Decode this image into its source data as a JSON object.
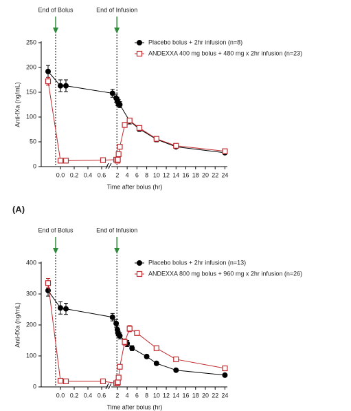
{
  "chart_data": [
    {
      "type": "line",
      "annotations": [
        {
          "text": "End of Bolus",
          "x": -0.07
        },
        {
          "text": "End of Infusion",
          "x": 1.9
        }
      ],
      "ylabel": "Anti-fXa (ng/mL)",
      "xlabel": "Time after bolus (hr)",
      "ylim": [
        0,
        250
      ],
      "yticks": [
        0,
        50,
        100,
        150,
        200,
        250
      ],
      "x_segments": [
        {
          "xlim": [
            -0.28,
            0.7
          ],
          "xticks": [
            {
              "value": 0,
              "label": "0.0"
            },
            0.2,
            0.4,
            0.6
          ]
        },
        {
          "xlim": [
            0.75,
            24.5
          ],
          "xticks": [
            2,
            4,
            6,
            8,
            10,
            12,
            14,
            16,
            18,
            20,
            22,
            24
          ]
        }
      ],
      "legend": "upper right",
      "series": [
        {
          "name": "Placebo bolus + 2hr infusion (n=8)",
          "color": "#000000",
          "marker": "circle",
          "x": [
            -0.18,
            0.0,
            0.08,
            1.0,
            1.75,
            2,
            2.1,
            2.25,
            2.5,
            4.5,
            6.5,
            10,
            14,
            24
          ],
          "values": [
            192,
            163,
            163,
            148,
            138,
            132,
            130,
            128,
            125,
            92,
            76,
            55,
            40,
            28
          ],
          "errors": [
            12,
            12,
            12,
            8,
            8,
            8,
            7,
            7,
            6,
            6,
            5,
            5,
            3,
            3
          ]
        },
        {
          "name": "ANDEXXA 400 mg bolus + 480 mg x 2hr infusion (n=23)",
          "color": "#c0282d",
          "marker": "square",
          "x": [
            -0.18,
            0.0,
            0.08,
            0.62,
            1.75,
            2,
            2.1,
            2.25,
            2.5,
            3.5,
            4.5,
            6.5,
            10,
            14,
            24
          ],
          "values": [
            172,
            12,
            12,
            13,
            14,
            12,
            14,
            25,
            40,
            84,
            93,
            78,
            56,
            42,
            31
          ],
          "errors": [
            8,
            2,
            2,
            2,
            2,
            2,
            2,
            3,
            4,
            5,
            5,
            4,
            4,
            3,
            3
          ]
        }
      ],
      "panel_label": "(A)"
    },
    {
      "type": "line",
      "annotations": [
        {
          "text": "End of Bolus",
          "x": -0.07
        },
        {
          "text": "End of Infusion",
          "x": 1.9
        }
      ],
      "ylabel": "Anti-fXa (ng/mL)",
      "xlabel": "Time after bolus (hr)",
      "ylim": [
        0,
        400
      ],
      "yticks": [
        0,
        100,
        200,
        300,
        400
      ],
      "x_segments": [
        {
          "xlim": [
            -0.28,
            0.7
          ],
          "xticks": [
            {
              "value": 0,
              "label": "0.0"
            },
            0.2,
            0.4,
            0.6
          ]
        },
        {
          "xlim": [
            0.75,
            24.5
          ],
          "xticks": [
            2,
            4,
            6,
            8,
            10,
            12,
            14,
            16,
            18,
            20,
            22,
            24
          ]
        }
      ],
      "legend": "upper right",
      "series": [
        {
          "name": "Placebo bolus + 2hr infusion (n=13)",
          "color": "#000000",
          "marker": "circle",
          "x": [
            -0.18,
            0.0,
            0.08,
            1.0,
            1.75,
            2,
            2.1,
            2.25,
            2.5,
            4,
            5,
            8,
            10,
            14,
            24
          ],
          "values": [
            311,
            255,
            252,
            225,
            205,
            185,
            175,
            170,
            165,
            140,
            125,
            98,
            76,
            54,
            38
          ],
          "errors": [
            18,
            20,
            18,
            12,
            12,
            12,
            10,
            10,
            10,
            10,
            8,
            6,
            5,
            4,
            3
          ]
        },
        {
          "name": "ANDEXXA 800 mg bolus + 960 mg x 2hr infusion (n=26)",
          "color": "#c0282d",
          "marker": "square",
          "x": [
            -0.18,
            0.0,
            0.08,
            0.62,
            1.75,
            2,
            2.1,
            2.25,
            2.5,
            3.5,
            4.5,
            6,
            10,
            14,
            24
          ],
          "values": [
            335,
            20,
            18,
            18,
            12,
            12,
            15,
            30,
            65,
            145,
            188,
            174,
            125,
            89,
            60
          ],
          "errors": [
            15,
            3,
            3,
            3,
            2,
            2,
            3,
            4,
            6,
            10,
            10,
            8,
            6,
            4,
            3
          ]
        }
      ]
    }
  ]
}
